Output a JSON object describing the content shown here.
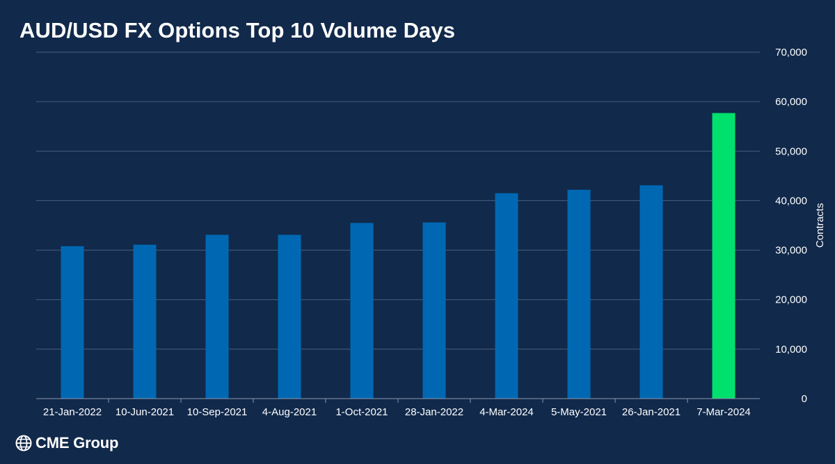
{
  "chart_data": {
    "type": "bar",
    "title": "AUD/USD FX Options Top 10 Volume Days",
    "categories": [
      "21-Jan-2022",
      "10-Jun-2021",
      "10-Sep-2021",
      "4-Aug-2021",
      "1-Oct-2021",
      "28-Jan-2022",
      "4-Mar-2024",
      "5-May-2021",
      "26-Jan-2021",
      "7-Mar-2024"
    ],
    "values": [
      30800,
      31100,
      33100,
      33100,
      35500,
      35600,
      41500,
      42200,
      43100,
      57700
    ],
    "ylabel": "Contracts",
    "ylim": [
      0,
      70000
    ],
    "yticks": [
      0,
      10000,
      20000,
      30000,
      40000,
      50000,
      60000,
      70000
    ],
    "ytick_labels": [
      "0",
      "10,000",
      "20,000",
      "30,000",
      "40,000",
      "50,000",
      "60,000",
      "70,000"
    ],
    "y_axis_side": "right",
    "grid": true,
    "bar_color": "#0068b3",
    "highlight_color": "#00e06c",
    "highlight_index": 9
  },
  "logo": {
    "text": "CME Group",
    "icon": "globe-icon"
  },
  "colors": {
    "background": "#11294b",
    "gridline": "#4a5f7e",
    "text": "#ffffff"
  }
}
